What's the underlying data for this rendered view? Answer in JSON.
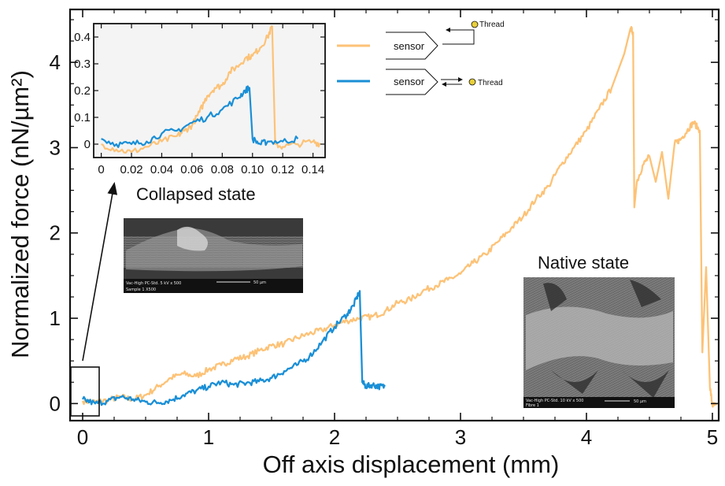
{
  "chart_data": [
    {
      "type": "line",
      "title": "",
      "xlabel": "Off axis displacement (mm)",
      "ylabel": "Normalized force (nN/µm²)",
      "xlim": [
        -0.1,
        5.05
      ],
      "ylim": [
        -0.2,
        4.62
      ],
      "xticks": [
        0,
        1,
        2,
        3,
        4,
        5
      ],
      "yticks": [
        0,
        1,
        2,
        3,
        4
      ],
      "grid": false,
      "series": [
        {
          "name": "sensor",
          "color": "#FDC276",
          "points": [
            [
              0,
              0.03
            ],
            [
              0.1,
              0.02
            ],
            [
              0.2,
              0.04
            ],
            [
              0.3,
              0.08
            ],
            [
              0.4,
              0.05
            ],
            [
              0.5,
              0.1
            ],
            [
              0.6,
              0.2
            ],
            [
              0.7,
              0.3
            ],
            [
              0.8,
              0.35
            ],
            [
              0.9,
              0.32
            ],
            [
              1.0,
              0.4
            ],
            [
              1.1,
              0.45
            ],
            [
              1.2,
              0.52
            ],
            [
              1.3,
              0.55
            ],
            [
              1.4,
              0.62
            ],
            [
              1.5,
              0.68
            ],
            [
              1.6,
              0.7
            ],
            [
              1.7,
              0.77
            ],
            [
              1.8,
              0.82
            ],
            [
              1.9,
              0.86
            ],
            [
              2.0,
              0.92
            ],
            [
              2.1,
              0.97
            ],
            [
              2.2,
              1.0
            ],
            [
              2.3,
              1.02
            ],
            [
              2.4,
              1.08
            ],
            [
              2.5,
              1.18
            ],
            [
              2.6,
              1.22
            ],
            [
              2.7,
              1.32
            ],
            [
              2.8,
              1.38
            ],
            [
              2.9,
              1.45
            ],
            [
              3.0,
              1.52
            ],
            [
              3.1,
              1.65
            ],
            [
              3.2,
              1.75
            ],
            [
              3.3,
              1.9
            ],
            [
              3.4,
              2.05
            ],
            [
              3.5,
              2.2
            ],
            [
              3.6,
              2.4
            ],
            [
              3.7,
              2.55
            ],
            [
              3.8,
              2.8
            ],
            [
              3.9,
              3.0
            ],
            [
              4.0,
              3.2
            ],
            [
              4.1,
              3.45
            ],
            [
              4.2,
              3.7
            ],
            [
              4.3,
              4.1
            ],
            [
              4.35,
              4.4
            ],
            [
              4.37,
              4.35
            ],
            [
              4.38,
              2.3
            ],
            [
              4.4,
              2.6
            ],
            [
              4.45,
              2.8
            ],
            [
              4.5,
              2.9
            ],
            [
              4.55,
              2.6
            ],
            [
              4.6,
              2.95
            ],
            [
              4.65,
              2.4
            ],
            [
              4.7,
              3.05
            ],
            [
              4.75,
              3.1
            ],
            [
              4.8,
              3.2
            ],
            [
              4.85,
              3.3
            ],
            [
              4.9,
              3.2
            ],
            [
              4.92,
              0.6
            ],
            [
              4.95,
              1.6
            ],
            [
              4.98,
              0.2
            ],
            [
              5.0,
              -0.02
            ],
            [
              5.03,
              -0.02
            ]
          ]
        },
        {
          "name": "sensor",
          "color": "#1A8FD6",
          "points": [
            [
              0,
              0.05
            ],
            [
              0.1,
              0.0
            ],
            [
              0.2,
              0.03
            ],
            [
              0.3,
              0.08
            ],
            [
              0.4,
              0.05
            ],
            [
              0.5,
              0.02
            ],
            [
              0.6,
              0.01
            ],
            [
              0.7,
              0.04
            ],
            [
              0.8,
              0.1
            ],
            [
              0.9,
              0.15
            ],
            [
              1.0,
              0.2
            ],
            [
              1.1,
              0.25
            ],
            [
              1.2,
              0.22
            ],
            [
              1.3,
              0.24
            ],
            [
              1.4,
              0.26
            ],
            [
              1.5,
              0.3
            ],
            [
              1.6,
              0.38
            ],
            [
              1.7,
              0.45
            ],
            [
              1.8,
              0.55
            ],
            [
              1.9,
              0.72
            ],
            [
              2.0,
              0.9
            ],
            [
              2.1,
              1.05
            ],
            [
              2.15,
              1.15
            ],
            [
              2.2,
              1.32
            ],
            [
              2.22,
              0.25
            ],
            [
              2.25,
              0.2
            ],
            [
              2.3,
              0.22
            ],
            [
              2.35,
              0.2
            ],
            [
              2.4,
              0.2
            ]
          ]
        }
      ],
      "legend": {
        "placement": "top",
        "entries": [
          {
            "label": "sensor",
            "color": "#FDC276",
            "thread": "Thread"
          },
          {
            "label": "sensor",
            "color": "#1A8FD6",
            "thread": "Thread"
          }
        ]
      },
      "annotations": [
        "Collapsed state",
        "Native state"
      ]
    },
    {
      "type": "line",
      "title": "",
      "xlabel": "",
      "ylabel": "",
      "xlim": [
        -0.005,
        0.148
      ],
      "ylim": [
        -0.05,
        0.45
      ],
      "xticks": [
        0,
        0.02,
        0.04,
        0.06,
        0.08,
        0.1,
        0.12,
        0.14
      ],
      "xtick_labels": [
        "0",
        "0.02",
        "0.04",
        "0.06",
        "0.08",
        "0.10",
        "0.12",
        "0.14"
      ],
      "yticks": [
        0,
        0.1,
        0.2,
        0.3,
        0.4
      ],
      "ytick_labels": [
        "0",
        "0.1",
        "0.2",
        "0.3",
        "0.4"
      ],
      "grid": false,
      "series": [
        {
          "name": "sensor",
          "color": "#FDC276",
          "points": [
            [
              0,
              0.0
            ],
            [
              0.01,
              -0.02
            ],
            [
              0.02,
              -0.03
            ],
            [
              0.03,
              -0.01
            ],
            [
              0.04,
              0.01
            ],
            [
              0.05,
              0.03
            ],
            [
              0.055,
              0.05
            ],
            [
              0.06,
              0.07
            ],
            [
              0.065,
              0.12
            ],
            [
              0.07,
              0.18
            ],
            [
              0.075,
              0.21
            ],
            [
              0.08,
              0.22
            ],
            [
              0.085,
              0.27
            ],
            [
              0.09,
              0.29
            ],
            [
              0.095,
              0.32
            ],
            [
              0.1,
              0.33
            ],
            [
              0.105,
              0.36
            ],
            [
              0.11,
              0.4
            ],
            [
              0.113,
              0.44
            ],
            [
              0.115,
              0.0
            ],
            [
              0.12,
              -0.01
            ],
            [
              0.13,
              0.0
            ],
            [
              0.14,
              0.01
            ],
            [
              0.145,
              0.0
            ]
          ]
        },
        {
          "name": "sensor",
          "color": "#1A8FD6",
          "points": [
            [
              0,
              0.02
            ],
            [
              0.01,
              0.0
            ],
            [
              0.02,
              0.0
            ],
            [
              0.03,
              0.01
            ],
            [
              0.04,
              0.04
            ],
            [
              0.05,
              0.05
            ],
            [
              0.06,
              0.08
            ],
            [
              0.07,
              0.1
            ],
            [
              0.08,
              0.13
            ],
            [
              0.09,
              0.17
            ],
            [
              0.095,
              0.2
            ],
            [
              0.098,
              0.21
            ],
            [
              0.1,
              0.02
            ],
            [
              0.105,
              0.0
            ],
            [
              0.11,
              0.01
            ],
            [
              0.12,
              0.01
            ],
            [
              0.13,
              0.02
            ]
          ]
        }
      ]
    }
  ],
  "images": {
    "collapsed_sem": {
      "footer_line1": "Vac-High   PC-Std.   5 kV   x 500",
      "scale": "50 µm",
      "footer_line2": "Sample 1 X500"
    },
    "native_sem": {
      "footer_line1": "Vac-High   PC-Std.   10 kV  x 500",
      "scale": "50 µm",
      "footer_line2": "Fibre 1"
    }
  }
}
